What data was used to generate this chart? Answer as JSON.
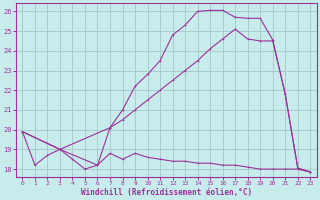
{
  "title": "Windchill (Refroidissement éolien,°C)",
  "bg_color": "#c8ecec",
  "line_color": "#993399",
  "grid_color": "#aacccc",
  "xlim": [
    -0.5,
    23.5
  ],
  "ylim": [
    17.6,
    26.4
  ],
  "xticks": [
    0,
    1,
    2,
    3,
    4,
    5,
    6,
    7,
    8,
    9,
    10,
    11,
    12,
    13,
    14,
    15,
    16,
    17,
    18,
    19,
    20,
    21,
    22,
    23
  ],
  "yticks": [
    18,
    19,
    20,
    21,
    22,
    23,
    24,
    25,
    26
  ],
  "line1_x": [
    0,
    1,
    2,
    3,
    4,
    5,
    6,
    7,
    8,
    9,
    10,
    11,
    12,
    13,
    14,
    15,
    16,
    17,
    18,
    19,
    20,
    21,
    22,
    23
  ],
  "line1_y": [
    19.9,
    18.2,
    18.7,
    19.0,
    18.5,
    18.0,
    18.2,
    18.8,
    18.5,
    18.8,
    18.6,
    18.5,
    18.4,
    18.4,
    18.3,
    18.3,
    18.2,
    18.2,
    18.1,
    18.0,
    18.0,
    18.0,
    18.0,
    17.85
  ],
  "line2_x": [
    0,
    3,
    6,
    7,
    8,
    9,
    10,
    11,
    12,
    13,
    14,
    15,
    16,
    17,
    18,
    19,
    20,
    21,
    22,
    23
  ],
  "line2_y": [
    19.9,
    19.0,
    18.2,
    20.1,
    21.0,
    22.2,
    22.8,
    23.5,
    24.8,
    25.3,
    26.0,
    26.05,
    26.05,
    25.7,
    25.65,
    25.65,
    24.55,
    21.8,
    18.05,
    17.85
  ],
  "line3_x": [
    0,
    3,
    7,
    8,
    9,
    10,
    11,
    12,
    13,
    14,
    15,
    16,
    17,
    18,
    19,
    20,
    21,
    22,
    23
  ],
  "line3_y": [
    19.9,
    19.0,
    20.1,
    20.5,
    21.0,
    21.5,
    22.0,
    22.5,
    23.0,
    23.5,
    24.1,
    24.6,
    25.1,
    24.6,
    24.5,
    24.5,
    21.8,
    18.05,
    17.85
  ]
}
